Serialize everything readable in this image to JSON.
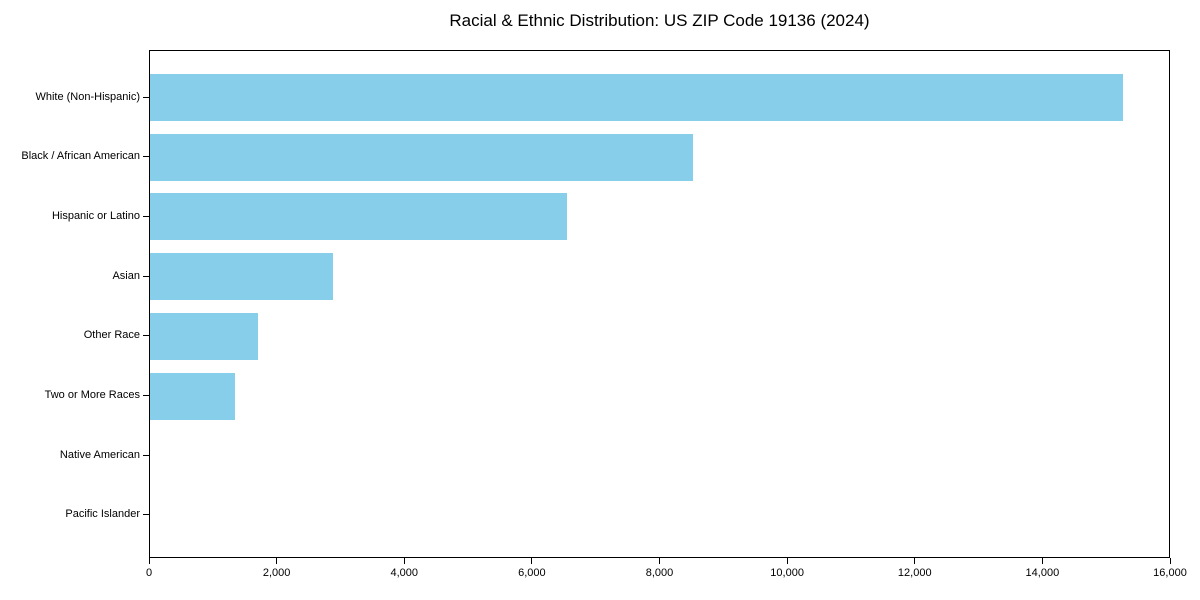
{
  "chart_data": {
    "type": "bar",
    "orientation": "horizontal",
    "title": "Racial & Ethnic Distribution: US ZIP Code 19136 (2024)",
    "categories": [
      "White (Non-Hispanic)",
      "Black / African American",
      "Hispanic or Latino",
      "Asian",
      "Other Race",
      "Two or More Races",
      "Native American",
      "Pacific Islander"
    ],
    "values": [
      15270,
      8520,
      6550,
      2870,
      1690,
      1330,
      0,
      0
    ],
    "xlabel": "",
    "ylabel": "",
    "xlim": [
      0,
      16000
    ],
    "xticks": [
      0,
      2000,
      4000,
      6000,
      8000,
      10000,
      12000,
      14000,
      16000
    ],
    "xtick_labels": [
      "0",
      "2,000",
      "4,000",
      "6,000",
      "8,000",
      "10,000",
      "12,000",
      "14,000",
      "16,000"
    ],
    "bar_color": "#87CEEB",
    "axis_color": "#000000",
    "background_color": "#FFFFFF",
    "grid": false,
    "legend": "none",
    "frame": true
  }
}
